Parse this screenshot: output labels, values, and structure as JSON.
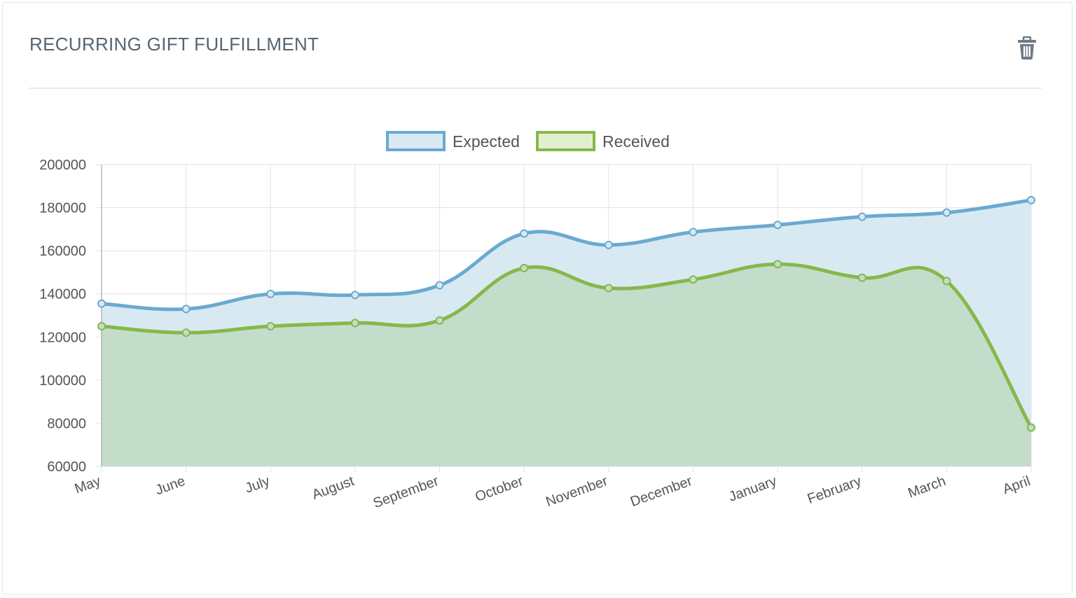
{
  "widget": {
    "title": "RECURRING GIFT FULFILLMENT",
    "delete_icon": "trash-icon"
  },
  "colors": {
    "expected_line": "#6aaad0",
    "expected_fill": "#d9e9f2",
    "received_line": "#86b84a",
    "received_fill": "#c4ddcb",
    "grid": "#e2e2e2",
    "axis_text": "#555555",
    "title_text": "#566573"
  },
  "chart_data": {
    "type": "area",
    "categories": [
      "May",
      "June",
      "July",
      "August",
      "September",
      "October",
      "November",
      "December",
      "January",
      "February",
      "March",
      "April"
    ],
    "series": [
      {
        "name": "Expected",
        "values": [
          135500,
          133000,
          140000,
          139500,
          144000,
          168000,
          162700,
          168700,
          172000,
          175800,
          177700,
          183500
        ]
      },
      {
        "name": "Received",
        "values": [
          125000,
          122000,
          125000,
          126500,
          127700,
          152000,
          142700,
          146700,
          153800,
          147500,
          146000,
          78000
        ]
      }
    ],
    "ylim": [
      60000,
      200000
    ],
    "yticks": [
      "200000",
      "180000",
      "160000",
      "140000",
      "120000",
      "100000",
      "80000",
      "60000"
    ],
    "legend_position": "top-center",
    "grid": true
  }
}
